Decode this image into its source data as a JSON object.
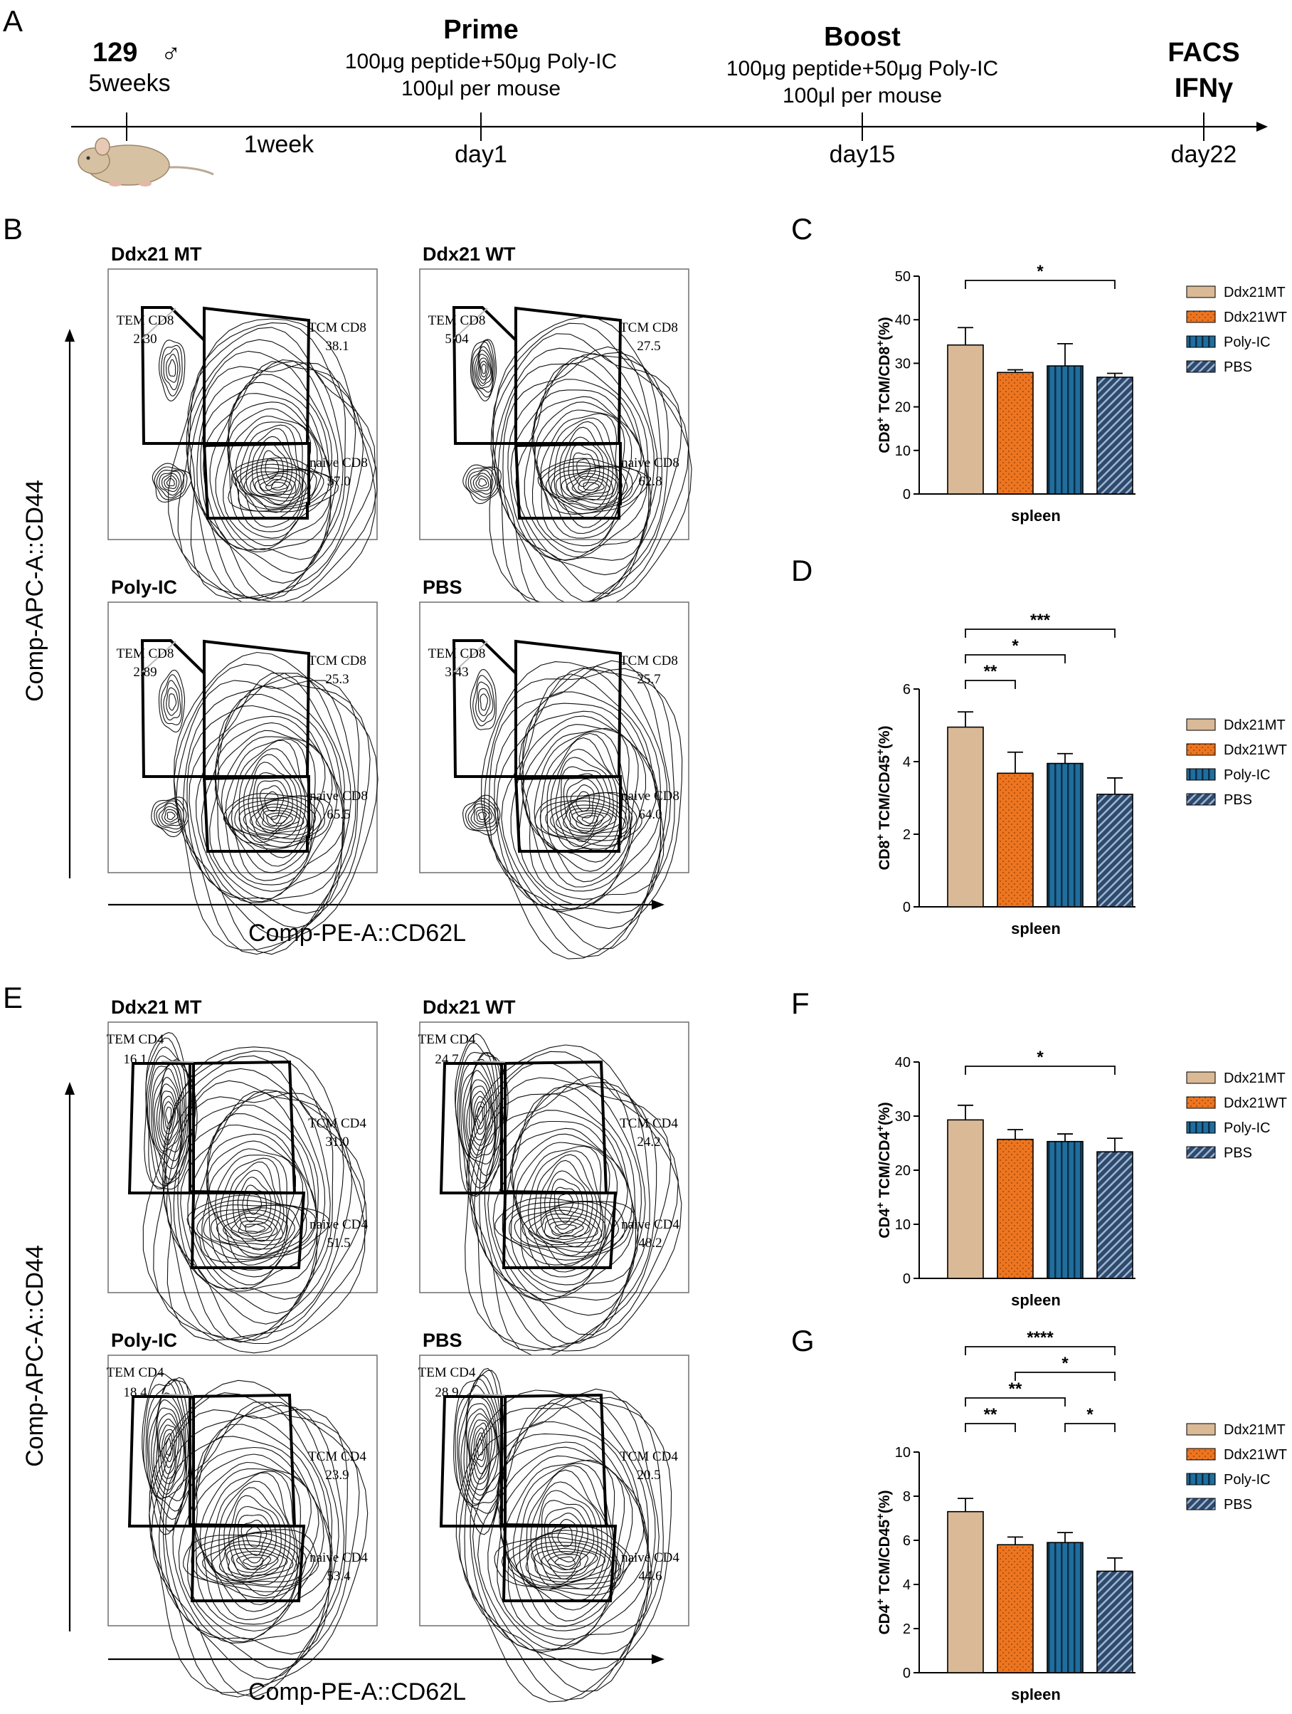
{
  "panel_a": {
    "label": "A",
    "mouse": {
      "strain": "129",
      "sex_symbol": "♂",
      "age": "5weeks"
    },
    "interval": "1week",
    "prime": {
      "title": "Prime",
      "line1": "100μg peptide+50μg Poly-IC",
      "line2": "100μl per mouse",
      "day": "day1"
    },
    "boost": {
      "title": "Boost",
      "line1": "100μg peptide+50μg Poly-IC",
      "line2": "100μl per mouse",
      "day": "day15"
    },
    "final": {
      "title1": "FACS",
      "title2": "IFNγ",
      "day": "day22"
    }
  },
  "panel_b": {
    "label": "B",
    "ylabel": "Comp-APC-A::CD44",
    "xlabel": "Comp-PE-A::CD62L",
    "plots": [
      {
        "title": "Ddx21 MT",
        "tem_label": "TEM CD8",
        "tem": "2.30",
        "tcm_label": "TCM CD8",
        "tcm": "38.1",
        "naive_label": "naive CD8",
        "naive": "57.0"
      },
      {
        "title": "Ddx21 WT",
        "tem_label": "TEM CD8",
        "tem": "5.04",
        "tcm_label": "TCM CD8",
        "tcm": "27.5",
        "naive_label": "naive CD8",
        "naive": "62.8"
      },
      {
        "title": "Poly-IC",
        "tem_label": "TEM CD8",
        "tem": "2.89",
        "tcm_label": "TCM CD8",
        "tcm": "25.3",
        "naive_label": "naive CD8",
        "naive": "65.5"
      },
      {
        "title": "PBS",
        "tem_label": "TEM CD8",
        "tem": "3.43",
        "tcm_label": "TCM CD8",
        "tcm": "25.7",
        "naive_label": "naive CD8",
        "naive": "64.0"
      }
    ]
  },
  "panel_e": {
    "label": "E",
    "ylabel": "Comp-APC-A::CD44",
    "xlabel": "Comp-PE-A::CD62L",
    "plots": [
      {
        "title": "Ddx21 MT",
        "tem_label": "TEM CD4",
        "tem": "16.1",
        "tcm_label": "TCM CD4",
        "tcm": "31.0",
        "naive_label": "naive CD4",
        "naive": "51.5"
      },
      {
        "title": "Ddx21 WT",
        "tem_label": "TEM CD4",
        "tem": "24.7",
        "tcm_label": "TCM CD4",
        "tcm": "24.2",
        "naive_label": "naive CD4",
        "naive": "48.2"
      },
      {
        "title": "Poly-IC",
        "tem_label": "TEM CD4",
        "tem": "18.4",
        "tcm_label": "TCM CD4",
        "tcm": "23.9",
        "naive_label": "naive CD4",
        "naive": "53.4"
      },
      {
        "title": "PBS",
        "tem_label": "TEM CD4",
        "tem": "28.9",
        "tcm_label": "TCM CD4",
        "tcm": "20.5",
        "naive_label": "naive CD4",
        "naive": "44.6"
      }
    ]
  },
  "colors": {
    "ddx21mt": "#d9b996",
    "ddx21wt": "#ed7520",
    "polyic": "#1f6e9e",
    "pbs": "#2e4a6e"
  },
  "chart_data": [
    {
      "type": "bar",
      "label": "C",
      "ylabel_main": "CD8",
      "ylabel_sup1": "+",
      "ylabel_mid": " TCM/CD8",
      "ylabel_sup2": "+",
      "ylabel_tail": "(%)",
      "xlabel": "spleen",
      "categories": [
        "Ddx21MT",
        "Ddx21WT",
        "Poly-IC",
        "PBS"
      ],
      "values": [
        34.2,
        27.9,
        29.4,
        26.8
      ],
      "errors": [
        4.0,
        0.6,
        5.1,
        0.9
      ],
      "ylim": [
        0,
        50
      ],
      "yticks": [
        "0",
        "10",
        "20",
        "30",
        "40",
        "50"
      ],
      "significance": [
        {
          "from": 0,
          "to": 3,
          "label": "*",
          "level": 0
        }
      ]
    },
    {
      "type": "bar",
      "label": "D",
      "ylabel_main": "CD8",
      "ylabel_sup1": "+",
      "ylabel_mid": " TCM/CD45",
      "ylabel_sup2": "+",
      "ylabel_tail": "(%)",
      "xlabel": "spleen",
      "categories": [
        "Ddx21MT",
        "Ddx21WT",
        "Poly-IC",
        "PBS"
      ],
      "values": [
        4.95,
        3.68,
        3.95,
        3.1
      ],
      "errors": [
        0.42,
        0.58,
        0.27,
        0.45
      ],
      "ylim": [
        0,
        6
      ],
      "yticks": [
        "0",
        "2",
        "4",
        "6"
      ],
      "significance": [
        {
          "from": 0,
          "to": 1,
          "label": "**",
          "level": 0
        },
        {
          "from": 0,
          "to": 2,
          "label": "*",
          "level": 1
        },
        {
          "from": 0,
          "to": 3,
          "label": "***",
          "level": 2
        }
      ]
    },
    {
      "type": "bar",
      "label": "F",
      "ylabel_main": "CD4",
      "ylabel_sup1": "+",
      "ylabel_mid": " TCM/CD4",
      "ylabel_sup2": "+",
      "ylabel_tail": "(%)",
      "xlabel": "spleen",
      "categories": [
        "Ddx21MT",
        "Ddx21WT",
        "Poly-IC",
        "PBS"
      ],
      "values": [
        29.3,
        25.7,
        25.3,
        23.4
      ],
      "errors": [
        2.7,
        1.8,
        1.4,
        2.5
      ],
      "ylim": [
        0,
        40
      ],
      "yticks": [
        "0",
        "10",
        "20",
        "30",
        "40"
      ],
      "significance": [
        {
          "from": 0,
          "to": 3,
          "label": "*",
          "level": 0
        }
      ]
    },
    {
      "type": "bar",
      "label": "G",
      "ylabel_main": "CD4",
      "ylabel_sup1": "+",
      "ylabel_mid": " TCM/CD45",
      "ylabel_sup2": "+",
      "ylabel_tail": "(%)",
      "xlabel": "spleen",
      "categories": [
        "Ddx21MT",
        "Ddx21WT",
        "Poly-IC",
        "PBS"
      ],
      "values": [
        7.3,
        5.8,
        5.9,
        4.6
      ],
      "errors": [
        0.6,
        0.35,
        0.45,
        0.6
      ],
      "ylim": [
        0,
        10
      ],
      "yticks": [
        "0",
        "2",
        "4",
        "6",
        "8",
        "10"
      ],
      "significance": [
        {
          "from": 0,
          "to": 1,
          "label": "**",
          "level": 0
        },
        {
          "from": 2,
          "to": 3,
          "label": "*",
          "level": 0
        },
        {
          "from": 0,
          "to": 2,
          "label": "**",
          "level": 1
        },
        {
          "from": 1,
          "to": 3,
          "label": "*",
          "level": 2
        },
        {
          "from": 0,
          "to": 3,
          "label": "****",
          "level": 3
        }
      ]
    }
  ]
}
